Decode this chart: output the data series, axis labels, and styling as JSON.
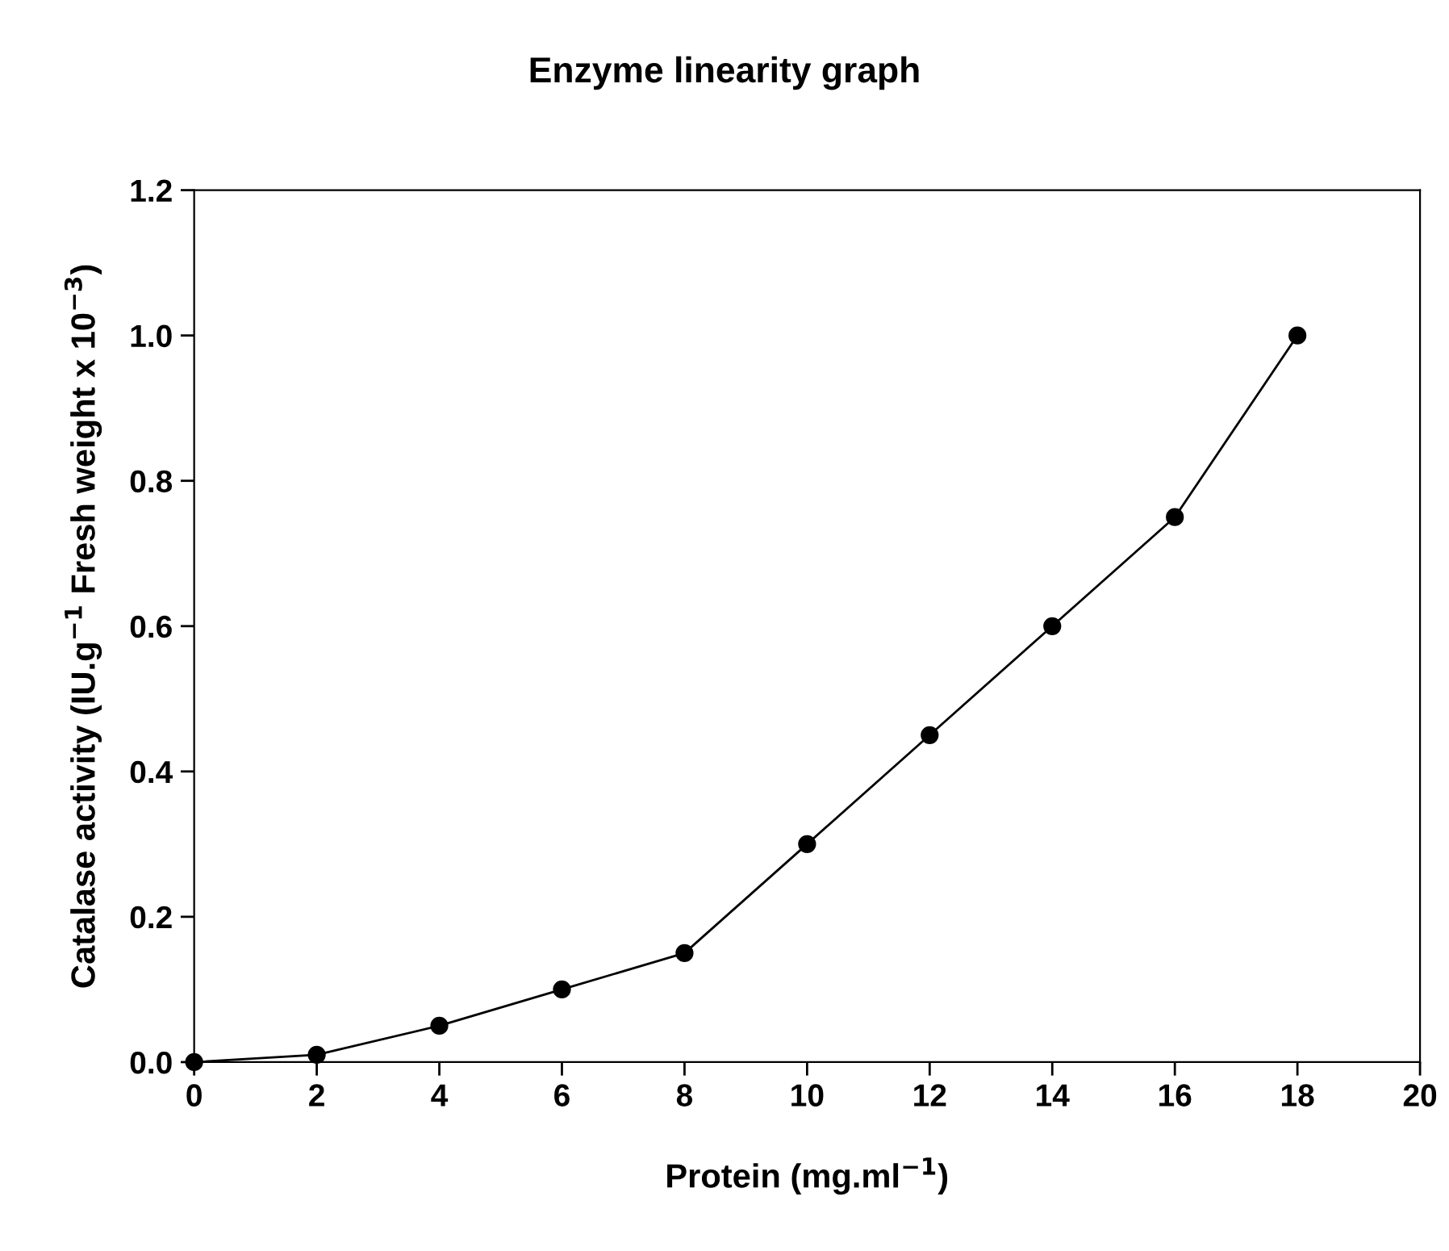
{
  "chart_data": {
    "type": "line",
    "title": "Enzyme linearity graph",
    "xlabel": "Protein (mg.ml$^{−1}$)",
    "ylabel": "Catalase activity (IU.g$^{−1}$ Fresh weight x 10$^{−3}$)",
    "x": [
      0,
      2,
      4,
      6,
      8,
      10,
      12,
      14,
      16,
      18
    ],
    "series": [
      {
        "color": "#000000",
        "values": [
          0,
          0.01,
          0.05,
          0.1,
          0.15,
          0.3,
          0.45,
          0.6,
          0.75,
          1.0
        ]
      }
    ],
    "xlim": [
      0,
      20
    ],
    "xticks": [
      0,
      2,
      4,
      6,
      8,
      10,
      12,
      14,
      16,
      18,
      20
    ],
    "ylim": [
      0,
      1.2
    ],
    "yticks": [
      {
        "value": 0,
        "label": "0.0"
      },
      {
        "value": 0.2,
        "label": "0.2"
      },
      {
        "value": 0.4,
        "label": "0.4"
      },
      {
        "value": 0.6,
        "label": "0.6"
      },
      {
        "value": 0.8,
        "label": "0.8"
      },
      {
        "value": 1.0,
        "label": "1.0"
      },
      {
        "value": 1.2,
        "label": "1.2"
      }
    ],
    "marker": "circle",
    "line_style": "solid",
    "grid": false,
    "legend": false
  }
}
